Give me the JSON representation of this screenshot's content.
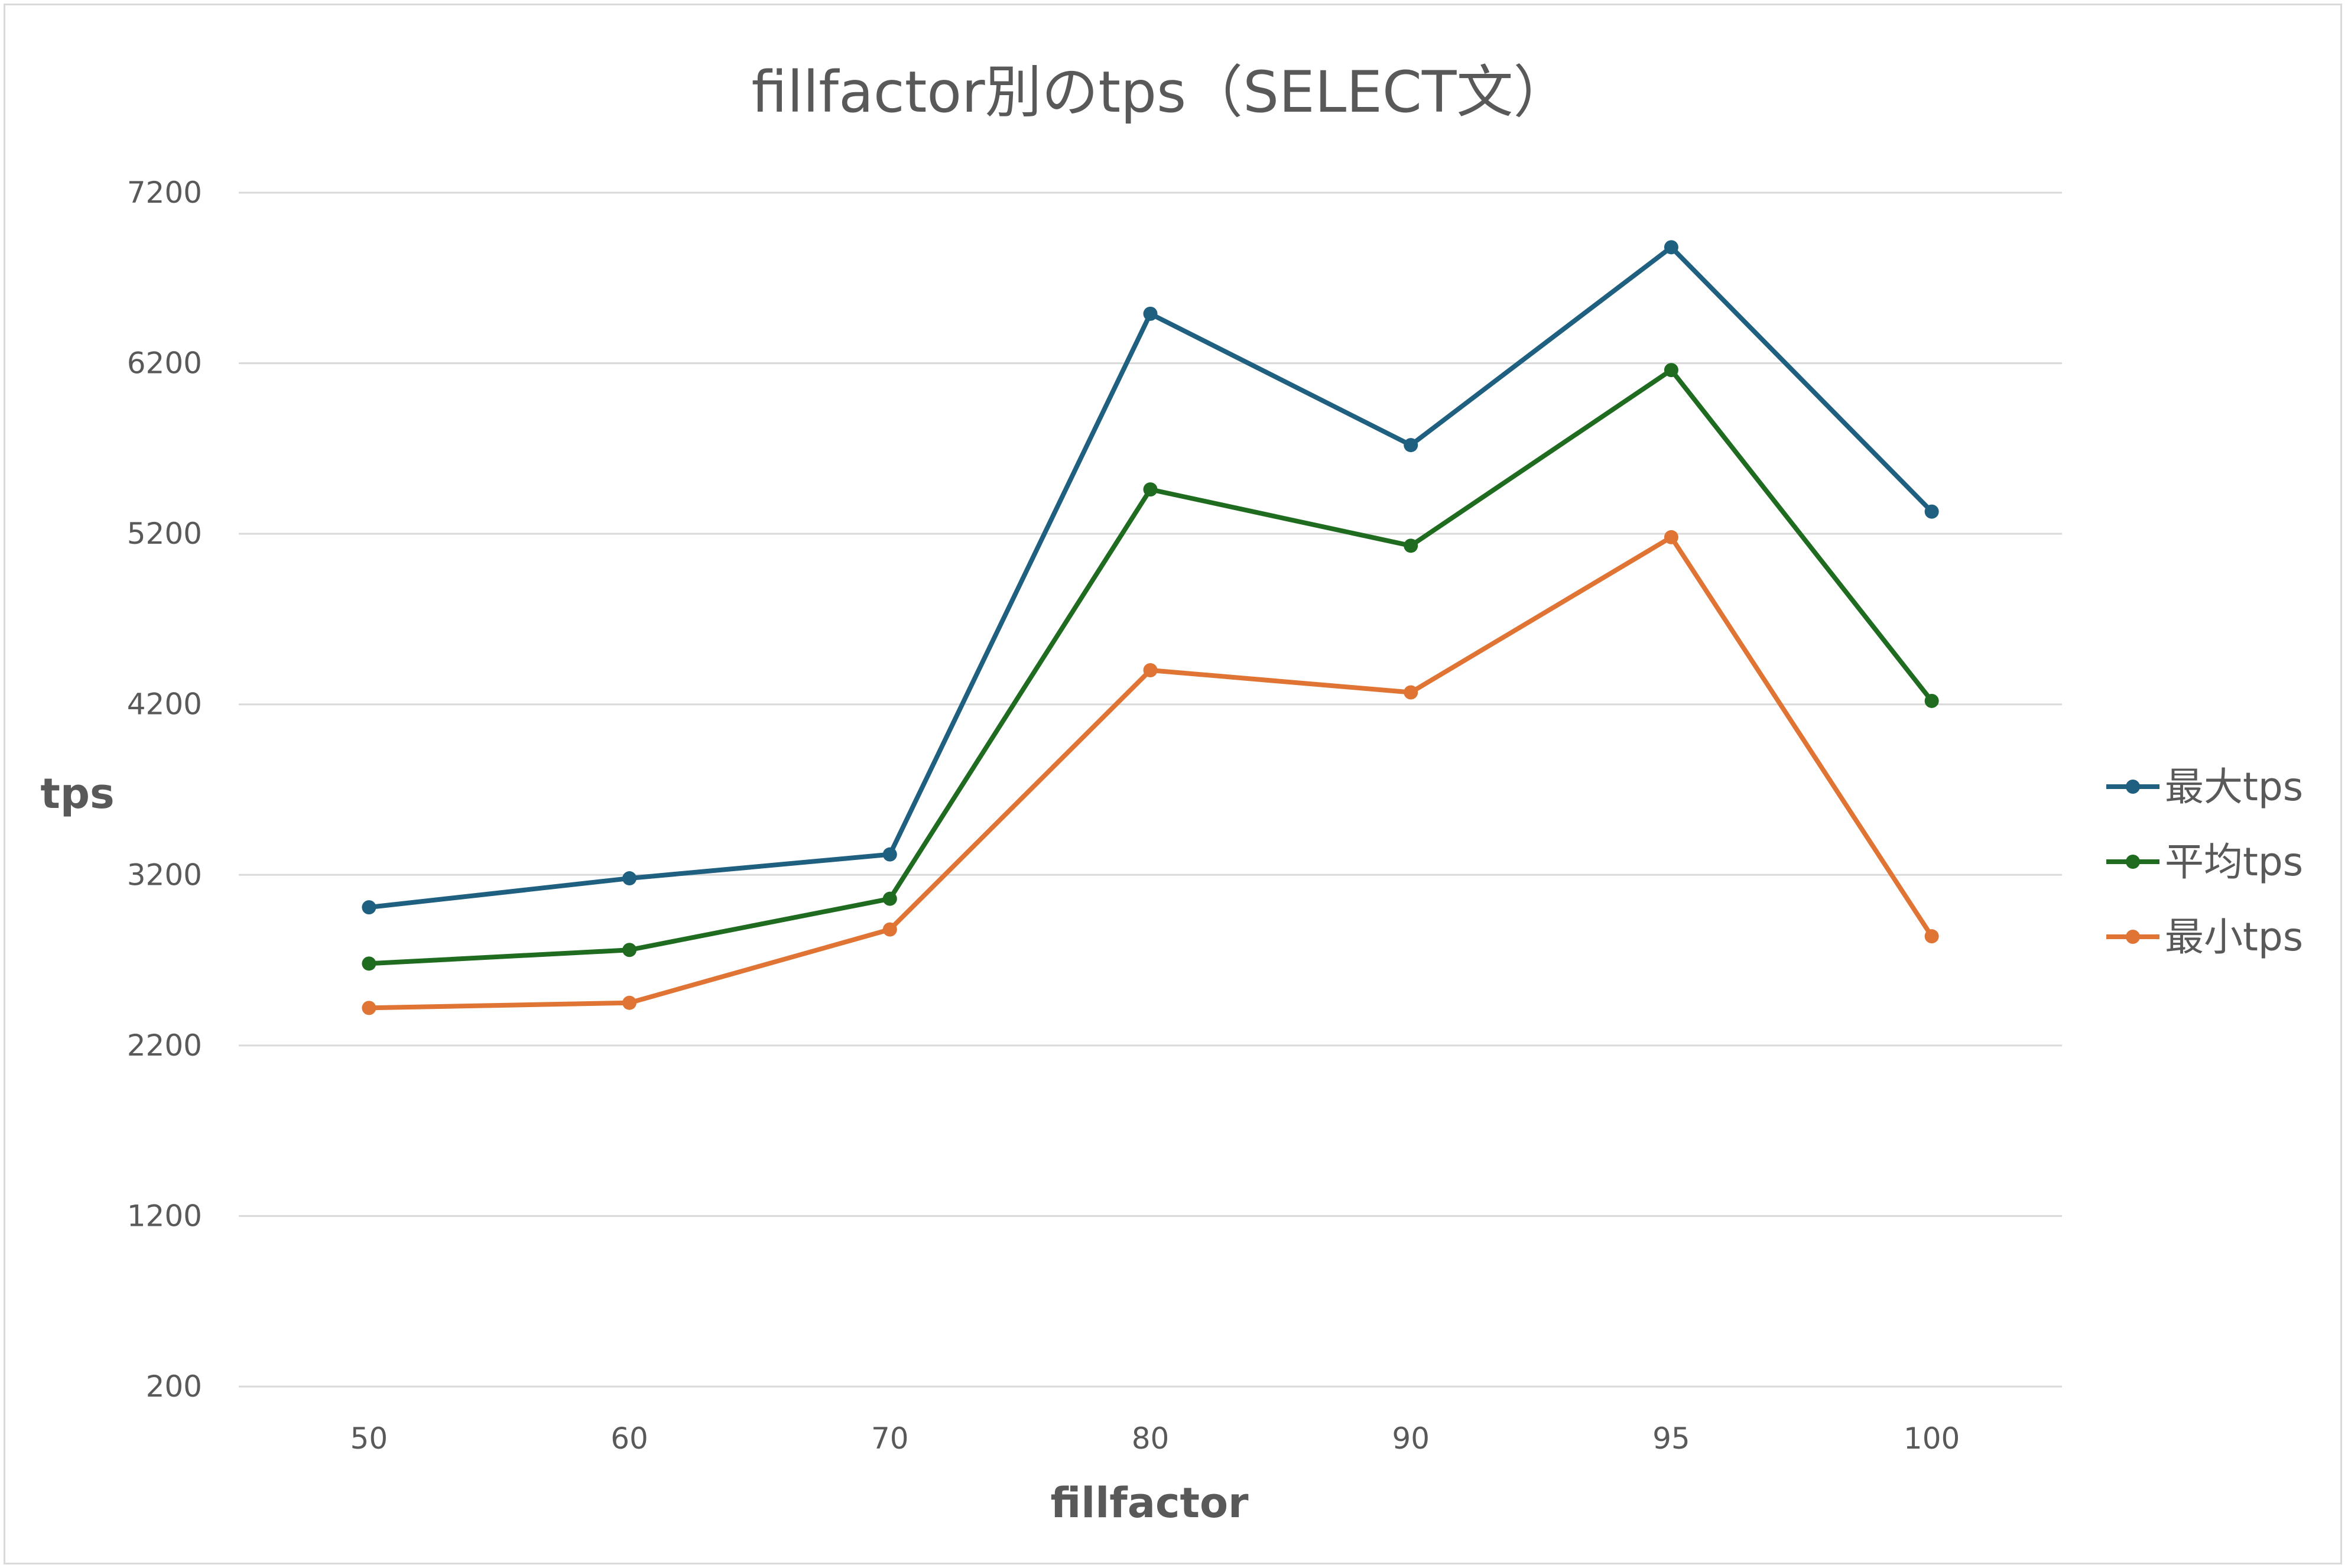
{
  "chart_data": {
    "type": "line",
    "title": "fillfactor別のtps（SELECT文）",
    "xlabel": "fillfactor",
    "ylabel": "tps",
    "categories": [
      "50",
      "60",
      "70",
      "80",
      "90",
      "95",
      "100"
    ],
    "yticks": [
      "7200",
      "6200",
      "5200",
      "4200",
      "3200",
      "2200",
      "1200",
      "200"
    ],
    "ylim": [
      200,
      7200
    ],
    "grid": true,
    "legend_position": "right",
    "series": [
      {
        "name": "最大tps",
        "color": "#1f5f7f",
        "values": [
          3010,
          3180,
          3320,
          6490,
          5720,
          6880,
          5330
        ]
      },
      {
        "name": "平均tps",
        "color": "#1f6b1f",
        "values": [
          2680,
          2760,
          3060,
          5460,
          5130,
          6160,
          4220
        ]
      },
      {
        "name": "最小tps",
        "color": "#e07434",
        "values": [
          2420,
          2450,
          2880,
          4400,
          4270,
          5180,
          2840
        ]
      }
    ]
  }
}
